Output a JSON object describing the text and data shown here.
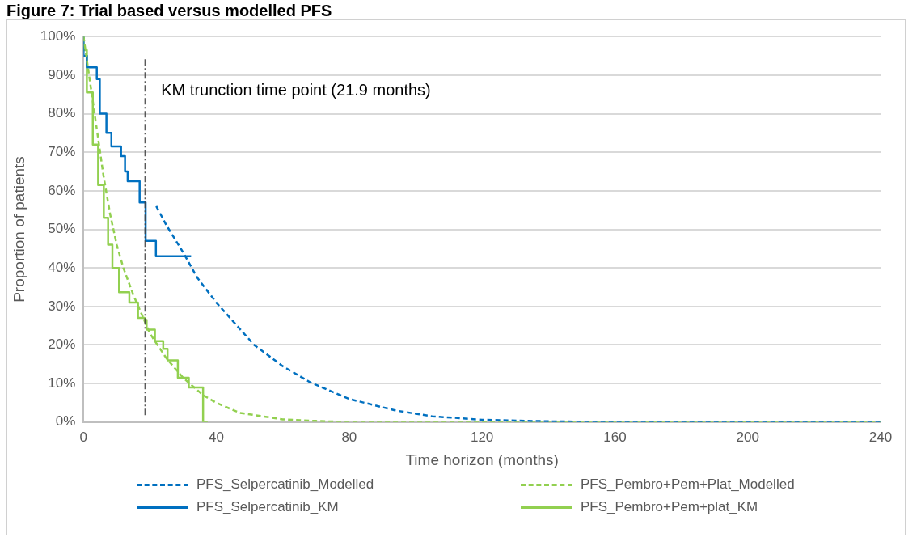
{
  "chart_data": {
    "type": "line",
    "title": "Figure 7: Trial based versus modelled PFS",
    "xlabel": "Time horizon (months)",
    "ylabel": "Proportion of patients",
    "xlim": [
      0,
      240
    ],
    "xticks": [
      0,
      40,
      80,
      120,
      160,
      200,
      240
    ],
    "ylim": [
      0,
      100
    ],
    "yticks": [
      {
        "value": 0,
        "label": "0%"
      },
      {
        "value": 10,
        "label": "10%"
      },
      {
        "value": 20,
        "label": "20%"
      },
      {
        "value": 30,
        "label": "30%"
      },
      {
        "value": 40,
        "label": "40%"
      },
      {
        "value": 50,
        "label": "50%"
      },
      {
        "value": 60,
        "label": "60%"
      },
      {
        "value": 70,
        "label": "70%"
      },
      {
        "value": 80,
        "label": "80%"
      },
      {
        "value": 90,
        "label": "90%"
      },
      {
        "value": 100,
        "label": "100%"
      }
    ],
    "grid": "y",
    "legend": "bottom",
    "marker": "none",
    "ref_lines": [
      {
        "axis": "x",
        "value": 18.5,
        "label": "KM trunction time point (21.9 months)",
        "color": "#404040",
        "line_style": "dashed"
      }
    ],
    "series": [
      {
        "name": "PFS_Selpercatinib_Modelled",
        "type": "line",
        "line_style": "dashed",
        "color": "#0070c0",
        "x": [
          21.9,
          25,
          30,
          34.3,
          40,
          51.4,
          60,
          68.3,
          80,
          94,
          105,
          120,
          140,
          165,
          240
        ],
        "values": [
          56,
          51,
          44,
          37.4,
          31,
          20,
          14.5,
          10.3,
          6,
          3,
          1.5,
          0.6,
          0.2,
          0,
          0
        ]
      },
      {
        "name": "PFS_Pembro+Pem+Plat_Modelled",
        "type": "line",
        "line_style": "dashed",
        "color": "#92d050",
        "x": [
          0,
          2,
          4,
          6,
          8,
          10,
          12,
          15,
          18,
          20,
          21.5,
          25,
          30,
          36,
          40,
          47,
          60,
          70,
          80,
          240
        ],
        "values": [
          100,
          88,
          76,
          64,
          54,
          46,
          40,
          33,
          27,
          23,
          21,
          16.5,
          11.5,
          7,
          5,
          2.4,
          0.7,
          0.3,
          0,
          0
        ]
      },
      {
        "name": "PFS_Selpercatinib_KM",
        "type": "step",
        "line_style": "solid",
        "color": "#0070c0",
        "x": [
          0,
          1,
          4,
          4.9,
          6.9,
          8.4,
          11.3,
          12.5,
          13.3,
          16.9,
          18.7,
          21.8,
          24.6,
          32.4
        ],
        "values": [
          100,
          95,
          92,
          89,
          80,
          75,
          71.5,
          69,
          65,
          62.5,
          57,
          47,
          43,
          43
        ]
      },
      {
        "name": "PFS_Pembro+Pem+plat_KM",
        "type": "step",
        "line_style": "solid",
        "color": "#92d050",
        "x": [
          0,
          1,
          2.8,
          4.4,
          6.1,
          7.4,
          8.7,
          10.7,
          13.8,
          16.4,
          18.4,
          19,
          21.5,
          24,
          25.3,
          28.4,
          31.7,
          36,
          37.4
        ],
        "values": [
          100,
          96.5,
          85.5,
          72,
          61.5,
          53,
          46,
          40,
          33.7,
          31,
          27,
          26.5,
          24,
          21,
          19,
          16,
          11.5,
          9,
          0
        ]
      }
    ]
  }
}
